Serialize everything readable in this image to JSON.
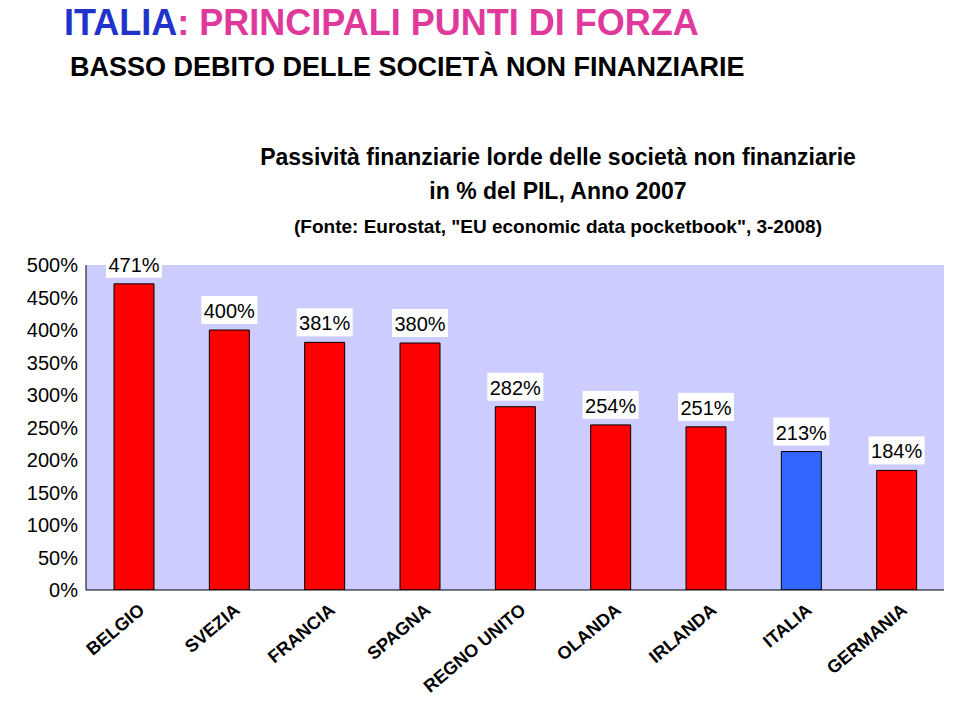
{
  "chart_data": {
    "type": "bar",
    "title": "ITALIA: PRINCIPALI PUNTI DI FORZA",
    "subtitle": "BASSO DEBITO DELLE SOCIETÀ NON FINANZIARIE",
    "annotations": [
      "Passività finanziarie lorde delle società non finanziarie",
      "in % del PIL, Anno 2007",
      "(Fonte: Eurostat, \"EU economic data pocketbook\", 3-2008)"
    ],
    "categories": [
      "BELGIO",
      "SVEZIA",
      "FRANCIA",
      "SPAGNA",
      "REGNO UNITO",
      "OLANDA",
      "IRLANDA",
      "ITALIA",
      "GERMANIA"
    ],
    "values": [
      471,
      400,
      381,
      380,
      282,
      254,
      251,
      213,
      184
    ],
    "value_labels": [
      "471%",
      "400%",
      "381%",
      "380%",
      "282%",
      "254%",
      "251%",
      "213%",
      "184%"
    ],
    "colors": [
      "#ff0000",
      "#ff0000",
      "#ff0000",
      "#ff0000",
      "#ff0000",
      "#ff0000",
      "#ff0000",
      "#3366ff",
      "#ff0000"
    ],
    "ylim": [
      0,
      500
    ],
    "yticks": [
      {
        "value": 0,
        "label": "0%"
      },
      {
        "value": 50,
        "label": "50%"
      },
      {
        "value": 100,
        "label": "100%"
      },
      {
        "value": 150,
        "label": "150%"
      },
      {
        "value": 200,
        "label": "200%"
      },
      {
        "value": 250,
        "label": "250%"
      },
      {
        "value": 300,
        "label": "300%"
      },
      {
        "value": 350,
        "label": "350%"
      },
      {
        "value": 400,
        "label": "400%"
      },
      {
        "value": 450,
        "label": "450%"
      },
      {
        "value": 500,
        "label": "500%"
      }
    ],
    "grid": false,
    "data_labels": true
  }
}
